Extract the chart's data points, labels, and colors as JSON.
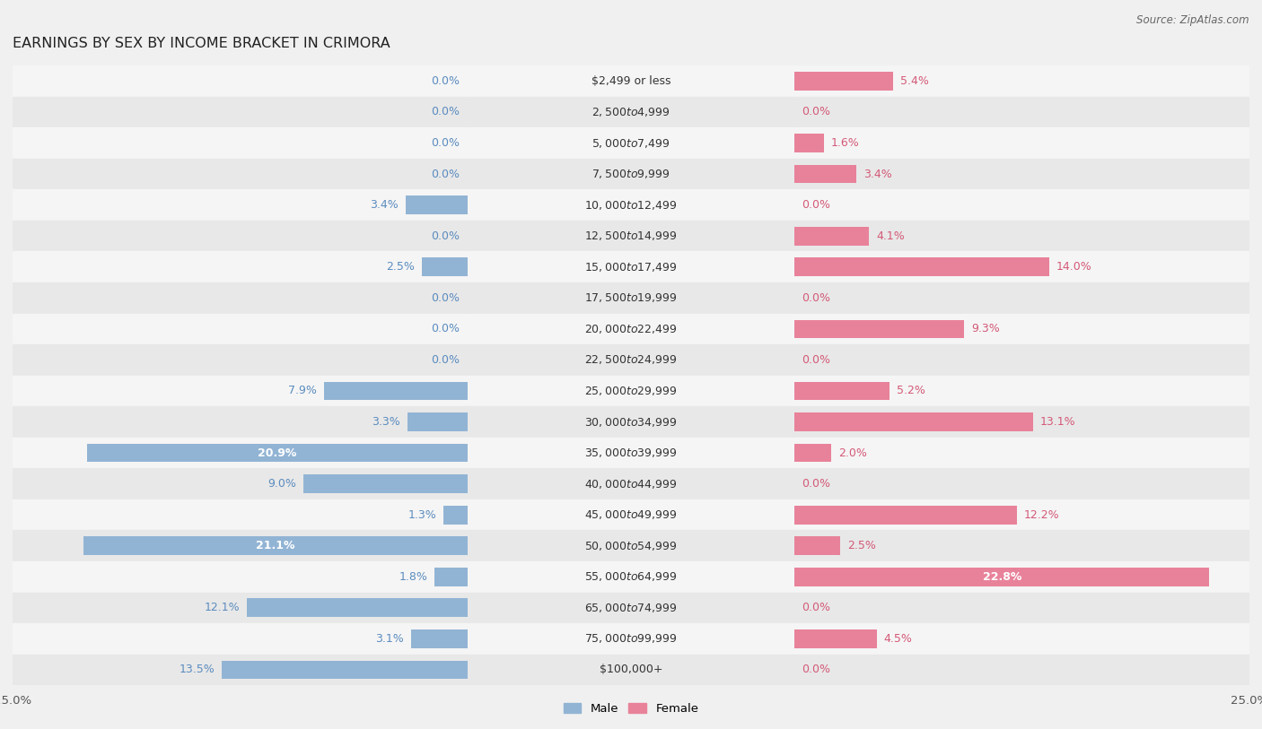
{
  "title": "EARNINGS BY SEX BY INCOME BRACKET IN CRIMORA",
  "source": "Source: ZipAtlas.com",
  "categories": [
    "$2,499 or less",
    "$2,500 to $4,999",
    "$5,000 to $7,499",
    "$7,500 to $9,999",
    "$10,000 to $12,499",
    "$12,500 to $14,999",
    "$15,000 to $17,499",
    "$17,500 to $19,999",
    "$20,000 to $22,499",
    "$22,500 to $24,999",
    "$25,000 to $29,999",
    "$30,000 to $34,999",
    "$35,000 to $39,999",
    "$40,000 to $44,999",
    "$45,000 to $49,999",
    "$50,000 to $54,999",
    "$55,000 to $64,999",
    "$65,000 to $74,999",
    "$75,000 to $99,999",
    "$100,000+"
  ],
  "male_values": [
    0.0,
    0.0,
    0.0,
    0.0,
    3.4,
    0.0,
    2.5,
    0.0,
    0.0,
    0.0,
    7.9,
    3.3,
    20.9,
    9.0,
    1.3,
    21.1,
    1.8,
    12.1,
    3.1,
    13.5
  ],
  "female_values": [
    5.4,
    0.0,
    1.6,
    3.4,
    0.0,
    4.1,
    14.0,
    0.0,
    9.3,
    0.0,
    5.2,
    13.1,
    2.0,
    0.0,
    12.2,
    2.5,
    22.8,
    0.0,
    4.5,
    0.0
  ],
  "male_color": "#92b4d4",
  "female_color": "#e8829a",
  "male_label_color": "#5b8cbf",
  "female_label_color": "#d45a78",
  "male_inner_label_color": "#ffffff",
  "female_inner_label_color": "#ffffff",
  "bg_color": "#f0f0f0",
  "row_color_light": "#f5f5f5",
  "row_color_dark": "#e8e8e8",
  "axis_limit": 25.0,
  "title_fontsize": 11.5,
  "label_fontsize": 9,
  "category_fontsize": 9,
  "tick_fontsize": 9.5,
  "bar_height": 0.6,
  "inner_label_threshold": 15.0
}
